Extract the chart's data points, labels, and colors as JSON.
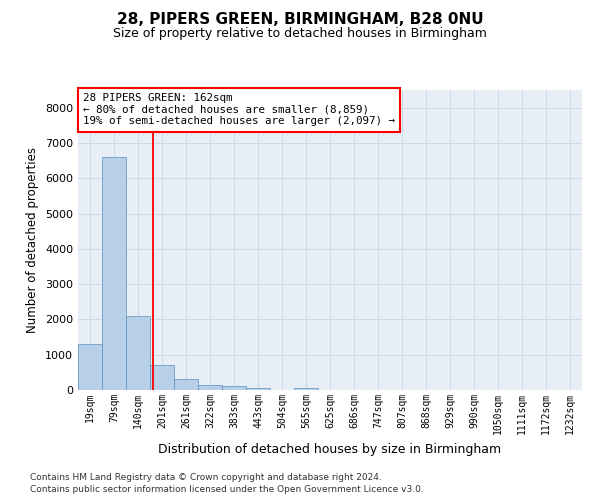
{
  "title1": "28, PIPERS GREEN, BIRMINGHAM, B28 0NU",
  "title2": "Size of property relative to detached houses in Birmingham",
  "xlabel": "Distribution of detached houses by size in Birmingham",
  "ylabel": "Number of detached properties",
  "bar_labels": [
    "19sqm",
    "79sqm",
    "140sqm",
    "201sqm",
    "261sqm",
    "322sqm",
    "383sqm",
    "443sqm",
    "504sqm",
    "565sqm",
    "625sqm",
    "686sqm",
    "747sqm",
    "807sqm",
    "868sqm",
    "929sqm",
    "990sqm",
    "1050sqm",
    "1111sqm",
    "1172sqm",
    "1232sqm"
  ],
  "bar_values": [
    1300,
    6600,
    2100,
    700,
    300,
    150,
    100,
    60,
    0,
    60,
    0,
    0,
    0,
    0,
    0,
    0,
    0,
    0,
    0,
    0,
    0
  ],
  "bar_color": "#b8cfe8",
  "bar_edge_color": "#5a8fc0",
  "grid_color": "#ccd9e8",
  "background_color": "#e8eef5",
  "red_line_x": 2.62,
  "annotation_text": "28 PIPERS GREEN: 162sqm\n← 80% of detached houses are smaller (8,859)\n19% of semi-detached houses are larger (2,097) →",
  "ylim": [
    0,
    8500
  ],
  "yticks": [
    0,
    1000,
    2000,
    3000,
    4000,
    5000,
    6000,
    7000,
    8000
  ],
  "footer_line1": "Contains HM Land Registry data © Crown copyright and database right 2024.",
  "footer_line2": "Contains public sector information licensed under the Open Government Licence v3.0."
}
